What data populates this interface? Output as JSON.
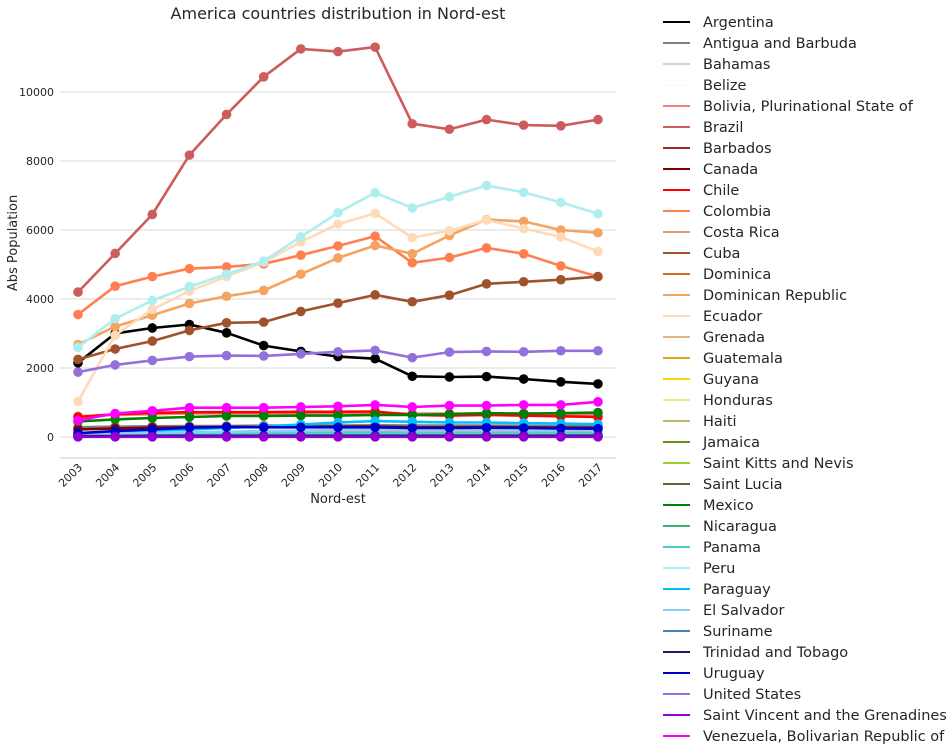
{
  "chart_data": {
    "type": "line",
    "title": "America countries distribution in Nord-est",
    "xlabel": "Nord-est",
    "ylabel": "Abs Population",
    "x": [
      "2003",
      "2004",
      "2005",
      "2006",
      "2007",
      "2008",
      "2009",
      "2010",
      "2011",
      "2012",
      "2013",
      "2014",
      "2015",
      "2016",
      "2017"
    ],
    "yticks": [
      0,
      2000,
      4000,
      6000,
      8000,
      10000
    ],
    "ylim": [
      -600,
      11700
    ],
    "grid": "horizontal",
    "legend_position": "right-outside",
    "series": [
      {
        "name": "Argentina",
        "color": "#000000",
        "values": [
          2150,
          3000,
          3160,
          3260,
          3020,
          2650,
          2480,
          2330,
          2270,
          1760,
          1740,
          1750,
          1680,
          1600,
          1540
        ]
      },
      {
        "name": "Antigua and Barbuda",
        "color": "#808080",
        "values": [
          280,
          300,
          310,
          320,
          320,
          330,
          330,
          330,
          340,
          330,
          330,
          330,
          320,
          320,
          320
        ]
      },
      {
        "name": "Bahamas",
        "color": "#d3d3d3",
        "values": [
          100,
          110,
          110,
          120,
          120,
          120,
          130,
          130,
          130,
          130,
          130,
          130,
          130,
          130,
          130
        ]
      },
      {
        "name": "Belize",
        "color": "#fffafa",
        "values": [
          40,
          40,
          40,
          40,
          40,
          40,
          40,
          40,
          40,
          40,
          40,
          40,
          40,
          40,
          40
        ]
      },
      {
        "name": "Bolivia, Plurinational State of",
        "color": "#f08080",
        "values": [
          600,
          640,
          660,
          680,
          680,
          680,
          690,
          700,
          700,
          680,
          680,
          680,
          670,
          660,
          650
        ]
      },
      {
        "name": "Brazil",
        "color": "#cd5c5c",
        "values": [
          4200,
          5320,
          6450,
          8170,
          9350,
          10440,
          11250,
          11170,
          11300,
          9080,
          8920,
          9200,
          9040,
          9020,
          9200
        ]
      },
      {
        "name": "Barbados",
        "color": "#a52a2a",
        "values": [
          20,
          20,
          20,
          20,
          20,
          20,
          20,
          20,
          20,
          20,
          20,
          20,
          20,
          20,
          20
        ]
      },
      {
        "name": "Canada",
        "color": "#800000",
        "values": [
          220,
          250,
          270,
          280,
          290,
          290,
          290,
          300,
          300,
          280,
          280,
          290,
          280,
          270,
          270
        ]
      },
      {
        "name": "Chile",
        "color": "#ff0000",
        "values": [
          580,
          660,
          700,
          720,
          720,
          720,
          730,
          730,
          740,
          640,
          620,
          640,
          620,
          600,
          580
        ]
      },
      {
        "name": "Colombia",
        "color": "#ff7f50",
        "values": [
          3550,
          4370,
          4650,
          4880,
          4930,
          5020,
          5270,
          5540,
          5820,
          5050,
          5200,
          5480,
          5310,
          4960,
          4650
        ]
      },
      {
        "name": "Costa Rica",
        "color": "#e9967a",
        "values": [
          100,
          110,
          120,
          120,
          130,
          130,
          130,
          140,
          140,
          130,
          130,
          130,
          130,
          130,
          130
        ]
      },
      {
        "name": "Cuba",
        "color": "#a0522d",
        "values": [
          2250,
          2550,
          2780,
          3090,
          3310,
          3330,
          3640,
          3880,
          4120,
          3920,
          4110,
          4440,
          4500,
          4560,
          4650
        ]
      },
      {
        "name": "Dominica",
        "color": "#d2691e",
        "values": [
          10,
          10,
          10,
          10,
          10,
          10,
          10,
          10,
          10,
          10,
          10,
          10,
          10,
          10,
          10
        ]
      },
      {
        "name": "Dominican Republic",
        "color": "#f4a460",
        "values": [
          2680,
          3200,
          3530,
          3870,
          4080,
          4250,
          4720,
          5190,
          5550,
          5310,
          5840,
          6300,
          6250,
          6000,
          5920
        ]
      },
      {
        "name": "Ecuador",
        "color": "#ffdab9",
        "values": [
          1030,
          2950,
          3700,
          4230,
          4650,
          5070,
          5650,
          6170,
          6480,
          5780,
          5980,
          6290,
          6040,
          5800,
          5380
        ]
      },
      {
        "name": "Grenada",
        "color": "#deb887",
        "values": [
          10,
          10,
          10,
          10,
          10,
          10,
          10,
          10,
          10,
          10,
          10,
          10,
          10,
          10,
          10
        ]
      },
      {
        "name": "Guatemala",
        "color": "#daa520",
        "values": [
          40,
          45,
          45,
          50,
          50,
          50,
          50,
          55,
          55,
          50,
          50,
          50,
          50,
          50,
          50
        ]
      },
      {
        "name": "Guyana",
        "color": "#ffd700",
        "values": [
          10,
          10,
          10,
          10,
          10,
          10,
          10,
          10,
          10,
          10,
          10,
          10,
          10,
          10,
          10
        ]
      },
      {
        "name": "Honduras",
        "color": "#f0e68c",
        "values": [
          30,
          35,
          35,
          40,
          40,
          40,
          40,
          45,
          45,
          40,
          40,
          40,
          40,
          40,
          40
        ]
      },
      {
        "name": "Haiti",
        "color": "#bdb76b",
        "values": [
          30,
          30,
          35,
          35,
          35,
          35,
          35,
          35,
          35,
          35,
          35,
          35,
          35,
          35,
          35
        ]
      },
      {
        "name": "Jamaica",
        "color": "#6b8e23",
        "values": [
          40,
          40,
          45,
          45,
          45,
          45,
          45,
          45,
          45,
          45,
          45,
          45,
          45,
          45,
          45
        ]
      },
      {
        "name": "Saint Kitts and Nevis",
        "color": "#9acd32",
        "values": [
          10,
          10,
          10,
          10,
          10,
          10,
          10,
          10,
          10,
          10,
          10,
          10,
          10,
          10,
          10
        ]
      },
      {
        "name": "Saint Lucia",
        "color": "#556b2f",
        "values": [
          10,
          10,
          10,
          10,
          10,
          10,
          10,
          10,
          10,
          10,
          10,
          10,
          10,
          10,
          10
        ]
      },
      {
        "name": "Mexico",
        "color": "#008000",
        "values": [
          450,
          510,
          550,
          580,
          610,
          610,
          620,
          620,
          640,
          640,
          660,
          690,
          680,
          690,
          710
        ]
      },
      {
        "name": "Nicaragua",
        "color": "#3cb371",
        "values": [
          20,
          20,
          20,
          20,
          20,
          20,
          20,
          20,
          20,
          20,
          20,
          20,
          20,
          20,
          20
        ]
      },
      {
        "name": "Panama",
        "color": "#48d1cc",
        "values": [
          60,
          70,
          80,
          90,
          90,
          100,
          100,
          110,
          110,
          100,
          100,
          100,
          100,
          100,
          100
        ]
      },
      {
        "name": "Peru",
        "color": "#afeeee",
        "values": [
          2600,
          3430,
          3960,
          4360,
          4720,
          5100,
          5800,
          6500,
          7080,
          6640,
          6960,
          7290,
          7090,
          6800,
          6470
        ]
      },
      {
        "name": "Paraguay",
        "color": "#00bfff",
        "values": [
          100,
          150,
          180,
          220,
          260,
          300,
          360,
          420,
          460,
          440,
          420,
          420,
          400,
          390,
          370
        ]
      },
      {
        "name": "El Salvador",
        "color": "#87cefa",
        "values": [
          80,
          100,
          120,
          140,
          150,
          170,
          180,
          200,
          210,
          200,
          200,
          200,
          190,
          190,
          190
        ]
      },
      {
        "name": "Suriname",
        "color": "#4682b4",
        "values": [
          20,
          20,
          20,
          20,
          20,
          20,
          20,
          20,
          20,
          20,
          20,
          20,
          20,
          20,
          20
        ]
      },
      {
        "name": "Trinidad and Tobago",
        "color": "#191970",
        "values": [
          30,
          30,
          35,
          35,
          35,
          35,
          35,
          35,
          35,
          35,
          35,
          35,
          35,
          35,
          35
        ]
      },
      {
        "name": "Uruguay",
        "color": "#0000cd",
        "values": [
          110,
          170,
          220,
          270,
          290,
          280,
          280,
          280,
          280,
          260,
          260,
          270,
          260,
          250,
          240
        ]
      },
      {
        "name": "United States",
        "color": "#9370db",
        "values": [
          1880,
          2090,
          2220,
          2330,
          2360,
          2350,
          2410,
          2470,
          2510,
          2300,
          2460,
          2480,
          2470,
          2500,
          2500
        ]
      },
      {
        "name": "Saint Vincent and the Grenadines",
        "color": "#9400d3",
        "values": [
          5,
          5,
          5,
          5,
          5,
          5,
          5,
          5,
          5,
          5,
          5,
          5,
          5,
          5,
          5
        ]
      },
      {
        "name": "Venezuela, Bolivarian Republic of",
        "color": "#ff00ff",
        "values": [
          480,
          680,
          760,
          850,
          850,
          850,
          870,
          890,
          930,
          870,
          910,
          910,
          930,
          930,
          1020
        ]
      }
    ]
  }
}
